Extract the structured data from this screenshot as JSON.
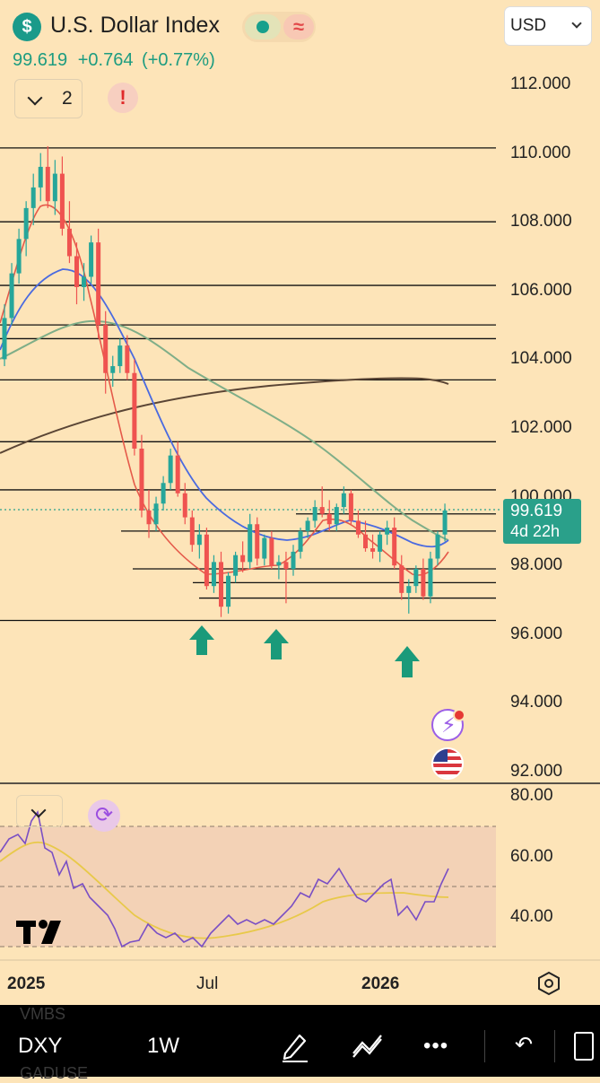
{
  "header": {
    "symbol_icon": "dollar-sign-icon",
    "symbol_icon_glyph": "$",
    "title": "U.S. Dollar Index",
    "wave_glyph": "≈",
    "price": "99.619",
    "change": "+0.764",
    "change_pct": "(+0.77%)",
    "interval_count": "2",
    "warning_glyph": "!",
    "currency": "USD"
  },
  "price_axis": {
    "labels": [
      "112.000",
      "110.000",
      "108.000",
      "106.000",
      "104.000",
      "102.000",
      "100.000",
      "98.000",
      "96.000",
      "94.000",
      "92.000"
    ]
  },
  "last_price": {
    "value": "99.619",
    "countdown": "4d 22h"
  },
  "rsi_axis": {
    "labels": [
      "80.00",
      "60.00",
      "40.00"
    ]
  },
  "time_axis": {
    "labels": [
      "2025",
      "Jul",
      "2026"
    ]
  },
  "toolbar": {
    "symbol": "DXY",
    "interval": "1W",
    "ghost_top": "VMBS",
    "ghost_bottom": "GADUSE",
    "more_glyph": "•••",
    "undo_glyph": "↶"
  },
  "chart_data": {
    "type": "candlestick",
    "up_color": "#26a69a",
    "down_color": "#ef5350",
    "ylim": [
      91.5,
      112.5
    ],
    "candles": [
      [
        104.0,
        105.6,
        103.8,
        105.2
      ],
      [
        105.2,
        106.8,
        105.0,
        106.5
      ],
      [
        106.5,
        107.8,
        106.2,
        107.5
      ],
      [
        107.5,
        108.6,
        107.0,
        108.4
      ],
      [
        108.4,
        109.4,
        107.9,
        109.0
      ],
      [
        109.0,
        110.0,
        108.6,
        109.6
      ],
      [
        109.6,
        110.2,
        108.4,
        108.6
      ],
      [
        108.6,
        109.8,
        108.2,
        109.4
      ],
      [
        109.4,
        109.9,
        107.6,
        107.8
      ],
      [
        107.8,
        108.6,
        106.8,
        107.0
      ],
      [
        107.0,
        107.4,
        105.6,
        106.1
      ],
      [
        106.1,
        106.8,
        105.7,
        106.4
      ],
      [
        106.4,
        107.6,
        106.2,
        107.4
      ],
      [
        107.4,
        107.8,
        104.6,
        105.0
      ],
      [
        105.0,
        105.4,
        103.0,
        103.6
      ],
      [
        103.6,
        104.1,
        103.2,
        103.8
      ],
      [
        103.8,
        104.6,
        103.6,
        104.4
      ],
      [
        104.4,
        104.7,
        103.4,
        103.6
      ],
      [
        103.6,
        104.0,
        101.2,
        101.4
      ],
      [
        101.4,
        101.8,
        99.4,
        99.6
      ],
      [
        99.6,
        100.2,
        98.8,
        99.2
      ],
      [
        99.2,
        100.0,
        99.0,
        99.8
      ],
      [
        99.8,
        100.6,
        99.6,
        100.4
      ],
      [
        100.4,
        101.4,
        100.2,
        101.2
      ],
      [
        101.2,
        101.6,
        100.0,
        100.1
      ],
      [
        100.1,
        100.4,
        99.2,
        99.4
      ],
      [
        99.4,
        99.6,
        98.4,
        98.6
      ],
      [
        98.6,
        99.2,
        98.2,
        98.9
      ],
      [
        98.9,
        99.1,
        97.3,
        97.4
      ],
      [
        97.4,
        98.3,
        97.2,
        98.1
      ],
      [
        98.1,
        98.4,
        96.5,
        96.8
      ],
      [
        96.8,
        97.8,
        96.6,
        97.7
      ],
      [
        97.7,
        98.4,
        97.5,
        98.3
      ],
      [
        98.3,
        98.7,
        97.8,
        98.1
      ],
      [
        98.1,
        99.5,
        97.9,
        99.2
      ],
      [
        99.2,
        99.4,
        98.0,
        98.2
      ],
      [
        98.2,
        98.9,
        98.0,
        98.8
      ],
      [
        98.8,
        99.0,
        97.9,
        98.0
      ],
      [
        98.0,
        98.3,
        97.6,
        98.1
      ],
      [
        98.1,
        98.4,
        96.9,
        97.9
      ],
      [
        97.9,
        98.6,
        97.7,
        98.4
      ],
      [
        98.4,
        99.1,
        98.2,
        99.0
      ],
      [
        99.0,
        99.4,
        98.8,
        99.3
      ],
      [
        99.3,
        99.9,
        99.1,
        99.7
      ],
      [
        99.7,
        100.3,
        99.4,
        99.5
      ],
      [
        99.5,
        99.9,
        99.0,
        99.2
      ],
      [
        99.2,
        99.8,
        99.0,
        99.7
      ],
      [
        99.7,
        100.3,
        99.5,
        100.1
      ],
      [
        100.1,
        100.2,
        99.2,
        99.3
      ],
      [
        99.3,
        99.6,
        98.8,
        98.9
      ],
      [
        98.9,
        99.3,
        98.4,
        98.5
      ],
      [
        98.5,
        98.9,
        98.2,
        98.4
      ],
      [
        98.4,
        99.0,
        98.1,
        98.9
      ],
      [
        98.9,
        99.3,
        98.6,
        99.1
      ],
      [
        99.1,
        99.4,
        97.9,
        98.0
      ],
      [
        98.0,
        98.3,
        97.0,
        97.2
      ],
      [
        97.2,
        97.6,
        96.6,
        97.4
      ],
      [
        97.4,
        98.0,
        97.2,
        97.9
      ],
      [
        97.9,
        98.2,
        97.0,
        97.1
      ],
      [
        97.1,
        98.4,
        96.9,
        98.2
      ],
      [
        98.2,
        99.0,
        98.0,
        98.9
      ],
      [
        98.9,
        99.8,
        98.7,
        99.6
      ]
    ],
    "horizontal_levels": [
      110.15,
      108.0,
      106.15,
      105.0,
      104.6,
      103.4,
      101.6,
      100.2,
      99.5,
      99.0,
      97.9,
      97.5,
      97.05,
      96.4
    ],
    "annotations": [
      "up-arrow",
      "up-arrow",
      "up-arrow"
    ]
  }
}
